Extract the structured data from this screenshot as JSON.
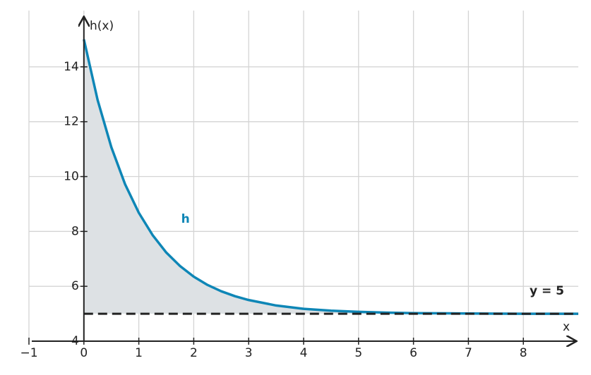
{
  "chart_data": {
    "type": "line",
    "x_label": "x",
    "y_label": "h(x)",
    "x": [
      0,
      0.25,
      0.5,
      0.75,
      1,
      1.25,
      1.5,
      1.75,
      2,
      2.25,
      2.5,
      2.75,
      3,
      3.5,
      4,
      4.5,
      5,
      5.5,
      6,
      7,
      8,
      9
    ],
    "series": [
      {
        "name": "h",
        "color": "#0e86b6",
        "values": [
          15,
          12.79,
          11.07,
          9.72,
          8.68,
          7.87,
          7.23,
          6.74,
          6.35,
          6.05,
          5.82,
          5.64,
          5.5,
          5.3,
          5.18,
          5.11,
          5.07,
          5.04,
          5.02,
          5.01,
          5,
          5
        ]
      }
    ],
    "asymptote": {
      "value": 5,
      "label": "y = 5",
      "color": "#222222"
    },
    "fill_color": "#dde1e4",
    "xlim": [
      -1,
      9
    ],
    "ylim": [
      4,
      16
    ],
    "xticks": [
      {
        "value": -1,
        "label": "−1"
      },
      0,
      1,
      2,
      3,
      4,
      5,
      6,
      7,
      8
    ],
    "yticks": [
      4,
      6,
      8,
      10,
      12,
      14
    ],
    "grid": true
  }
}
